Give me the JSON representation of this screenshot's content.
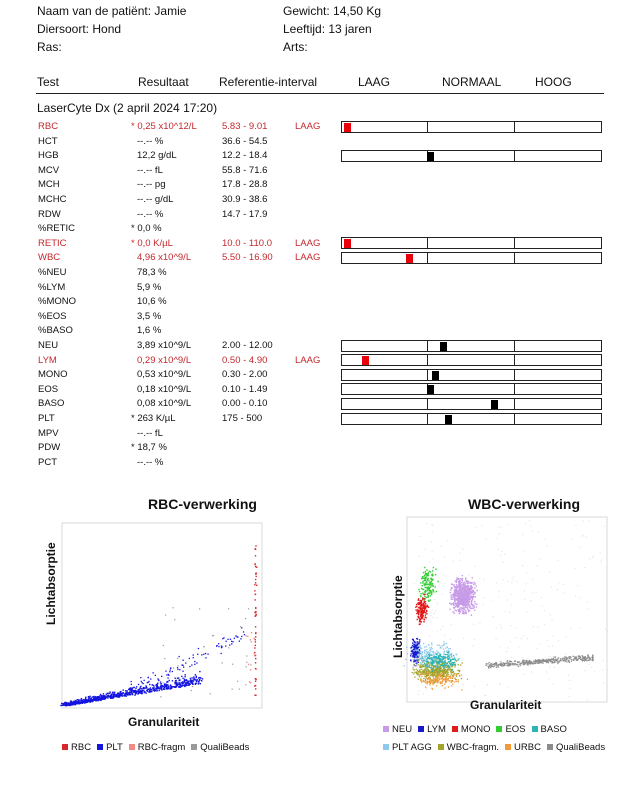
{
  "patient": {
    "name_label": "Naam van de patiënt: Jamie",
    "species_label": "Diersoort: Hond",
    "breed_label": "Ras:",
    "weight_label": "Gewicht: 14,50 Kg",
    "age_label": "Leeftijd: 13 jaren",
    "vet_label": "Arts:"
  },
  "columns": {
    "test": "Test",
    "result": "Resultaat",
    "reference": "Referentie-interval",
    "low": "LAAG",
    "normal": "NORMAAL",
    "high": "HOOG"
  },
  "section_title": "LaserCyte Dx (2 april 2024 17:20)",
  "colors": {
    "flag_red": "#c4282d",
    "marker_red": "#e8000b",
    "marker_black": "#000000"
  },
  "rows": [
    {
      "name": "RBC",
      "result": "* 0,25 x10^12/L",
      "ref": "5.83 - 9.01",
      "flag": "LAAG",
      "red": true,
      "bar": true,
      "marker": 0.02
    },
    {
      "name": "HCT",
      "result": "--.-- %",
      "ref": "36.6 - 54.5",
      "flag": "",
      "red": false,
      "bar": false
    },
    {
      "name": "HGB",
      "result": "12,2 g/dL",
      "ref": "12.2 - 18.4",
      "flag": "",
      "red": false,
      "bar": true,
      "marker": 0.34
    },
    {
      "name": "MCV",
      "result": "--.-- fL",
      "ref": "55.8 - 71.6",
      "flag": "",
      "red": false,
      "bar": false
    },
    {
      "name": "MCH",
      "result": "--.-- pg",
      "ref": "17.8 - 28.8",
      "flag": "",
      "red": false,
      "bar": false
    },
    {
      "name": "MCHC",
      "result": "--.-- g/dL",
      "ref": "30.9 - 38.6",
      "flag": "",
      "red": false,
      "bar": false
    },
    {
      "name": "RDW",
      "result": "--.-- %",
      "ref": "14.7 - 17.9",
      "flag": "",
      "red": false,
      "bar": false
    },
    {
      "name": "%RETIC",
      "result": "* 0,0 %",
      "ref": "",
      "flag": "",
      "red": false,
      "bar": false
    },
    {
      "name": "RETIC",
      "result": "* 0,0 K/µL",
      "ref": "10.0 - 110.0",
      "flag": "LAAG",
      "red": true,
      "bar": true,
      "marker": 0.02
    },
    {
      "name": "WBC",
      "result": "4,96 x10^9/L",
      "ref": "5.50 - 16.90",
      "flag": "LAAG",
      "red": true,
      "bar": true,
      "marker": 0.26
    },
    {
      "name": "%NEU",
      "result": "78,3 %",
      "ref": "",
      "flag": "",
      "red": false,
      "bar": false
    },
    {
      "name": "%LYM",
      "result": "5,9 %",
      "ref": "",
      "flag": "",
      "red": false,
      "bar": false
    },
    {
      "name": "%MONO",
      "result": "10,6 %",
      "ref": "",
      "flag": "",
      "red": false,
      "bar": false
    },
    {
      "name": "%EOS",
      "result": "3,5 %",
      "ref": "",
      "flag": "",
      "red": false,
      "bar": false
    },
    {
      "name": "%BASO",
      "result": "1,6 %",
      "ref": "",
      "flag": "",
      "red": false,
      "bar": false
    },
    {
      "name": "NEU",
      "result": "3,89 x10^9/L",
      "ref": "2.00 - 12.00",
      "flag": "",
      "red": false,
      "bar": true,
      "marker": 0.39
    },
    {
      "name": "LYM",
      "result": "0,29 x10^9/L",
      "ref": "0.50 - 4.90",
      "flag": "LAAG",
      "red": true,
      "bar": true,
      "marker": 0.09
    },
    {
      "name": "MONO",
      "result": "0,53 x10^9/L",
      "ref": "0.30 - 2.00",
      "flag": "",
      "red": false,
      "bar": true,
      "marker": 0.36
    },
    {
      "name": "EOS",
      "result": "0,18 x10^9/L",
      "ref": "0.10 - 1.49",
      "flag": "",
      "red": false,
      "bar": true,
      "marker": 0.34
    },
    {
      "name": "BASO",
      "result": "0,08 x10^9/L",
      "ref": "0.00 - 0.10",
      "flag": "",
      "red": false,
      "bar": true,
      "marker": 0.59
    },
    {
      "name": "PLT",
      "result": "* 263 K/µL",
      "ref": "175 - 500",
      "flag": "",
      "red": false,
      "bar": true,
      "marker": 0.41
    },
    {
      "name": "MPV",
      "result": "--.-- fL",
      "ref": "",
      "flag": "",
      "red": false,
      "bar": false
    },
    {
      "name": "PDW",
      "result": "* 18,7 %",
      "ref": "",
      "flag": "",
      "red": false,
      "bar": false
    },
    {
      "name": "PCT",
      "result": "--.-- %",
      "ref": "",
      "flag": "",
      "red": false,
      "bar": false
    }
  ],
  "rbc_plot": {
    "title": "RBC-verwerking",
    "xlabel": "Granulariteit",
    "ylabel": "Lichtabsorptie",
    "legend": [
      {
        "label": "RBC",
        "color": "#d9262b"
      },
      {
        "label": "PLT",
        "color": "#1515e0"
      },
      {
        "label": "RBC-fragm",
        "color": "#f28a85"
      },
      {
        "label": "QualiBeads",
        "color": "#9a9a9a"
      }
    ]
  },
  "wbc_plot": {
    "title": "WBC-verwerking",
    "xlabel": "Granulariteit",
    "ylabel": "Lichtabsorptie",
    "legend_row1": [
      {
        "label": "NEU",
        "color": "#c79be8"
      },
      {
        "label": "LYM",
        "color": "#1a1acc"
      },
      {
        "label": "MONO",
        "color": "#e01b1b"
      },
      {
        "label": "EOS",
        "color": "#33cc33"
      },
      {
        "label": "BASO",
        "color": "#2bb5b5"
      }
    ],
    "legend_row2": [
      {
        "label": "PLT AGG",
        "color": "#8ec9ee"
      },
      {
        "label": "WBC-fragm.",
        "color": "#a3a32a"
      },
      {
        "label": "URBC",
        "color": "#f29a3a"
      },
      {
        "label": "QualiBeads",
        "color": "#8c8c8c"
      }
    ]
  }
}
